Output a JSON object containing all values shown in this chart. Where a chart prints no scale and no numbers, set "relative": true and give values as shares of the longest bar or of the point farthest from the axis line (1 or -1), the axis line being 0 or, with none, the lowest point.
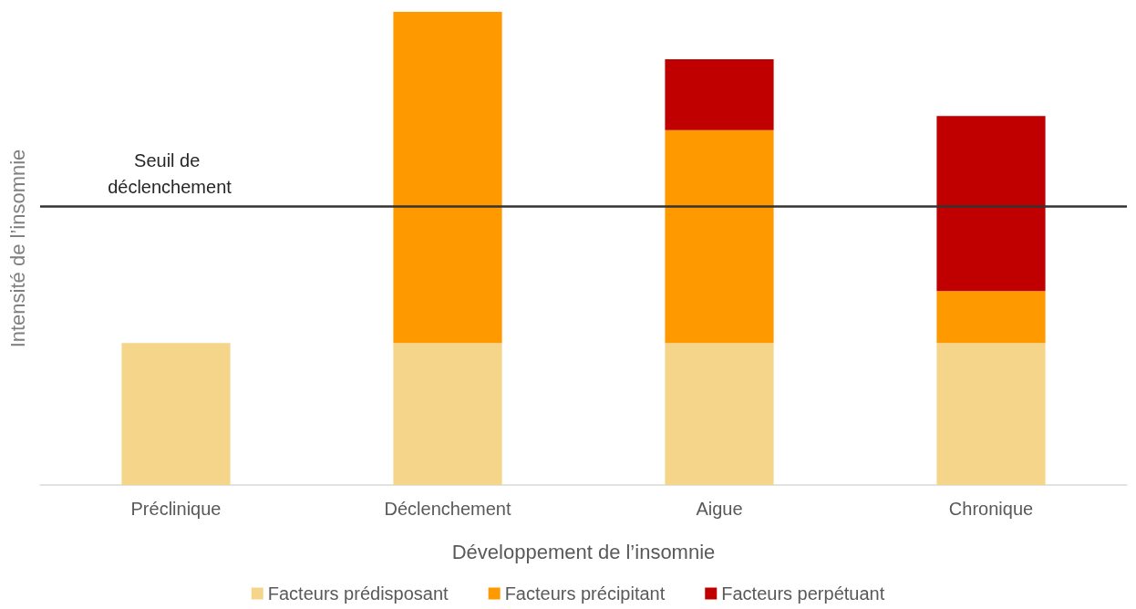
{
  "chart_data": {
    "type": "bar",
    "stacked": true,
    "relative": true,
    "xlabel": "Développement de l’insomnie",
    "ylabel": "Intensité de l’insomnie",
    "categories": [
      "Préclinique",
      "Déclenchement",
      "Aigue",
      "Chronique"
    ],
    "series": [
      {
        "name": "Facteurs prédisposant",
        "color": "#f5d58a",
        "values": [
          0.3,
          0.3,
          0.3,
          0.3
        ]
      },
      {
        "name": "Facteurs précipitant",
        "color": "#ff9900",
        "values": [
          null,
          0.7,
          0.45,
          0.11
        ]
      },
      {
        "name": "Facteurs perpétuant",
        "color": "#c00000",
        "values": [
          null,
          null,
          0.15,
          0.37
        ]
      }
    ],
    "ref_lines": [
      {
        "axis": "y",
        "value": 0.59,
        "label": "Seuil de déclenchement",
        "color": "#333333"
      }
    ],
    "legend": "bottom"
  }
}
